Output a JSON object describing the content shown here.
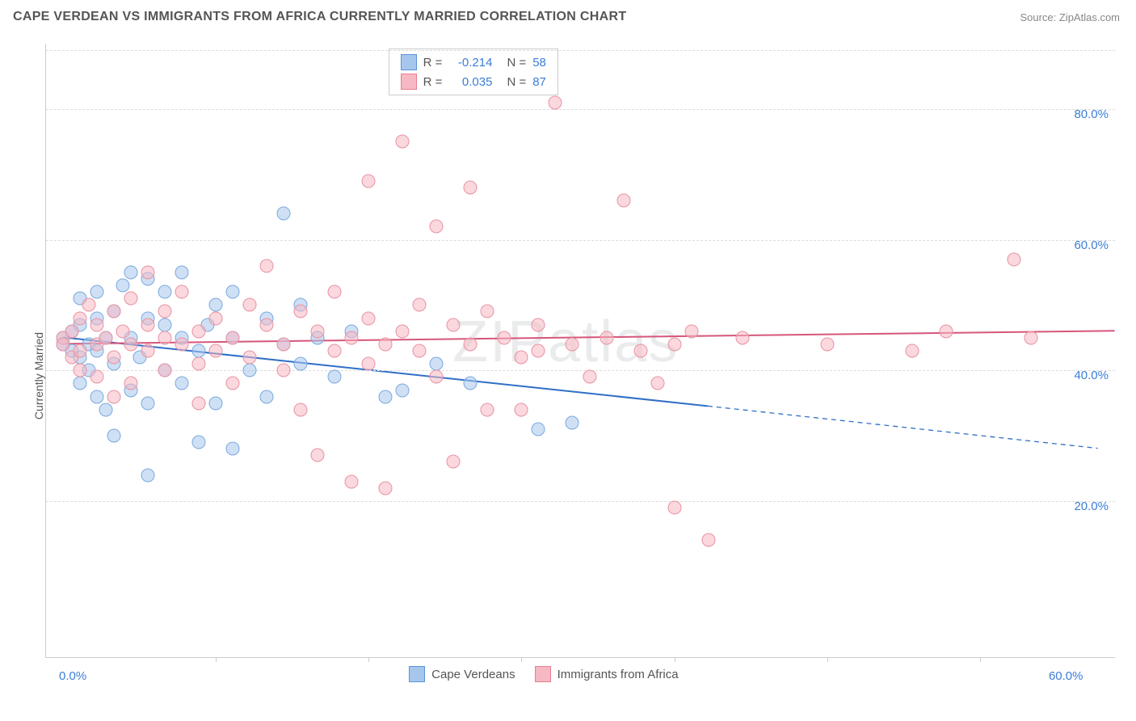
{
  "header": {
    "title": "CAPE VERDEAN VS IMMIGRANTS FROM AFRICA CURRENTLY MARRIED CORRELATION CHART",
    "source": "Source: ZipAtlas.com"
  },
  "chart": {
    "type": "scatter",
    "watermark": "ZIPatlas",
    "y_axis": {
      "title": "Currently Married",
      "ticks": [
        0,
        20,
        40,
        60,
        80
      ],
      "tick_labels": [
        "0.0%",
        "20.0%",
        "40.0%",
        "60.0%",
        "80.0%"
      ],
      "range": [
        -4,
        90
      ],
      "label_color": "#3b7dd8",
      "grid_values": [
        20,
        40,
        60,
        80,
        89
      ],
      "grid_color": "#dddddd"
    },
    "x_axis": {
      "ticks": [
        0,
        60
      ],
      "tick_labels": [
        "0.0%",
        "60.0%"
      ],
      "range": [
        -1,
        62
      ],
      "label_color": "#3b7dd8",
      "minor_ticks": [
        9,
        18,
        27,
        36,
        45,
        54
      ]
    },
    "legend_top": {
      "rows": [
        {
          "swatch_fill": "#a7c6ed",
          "swatch_border": "#5a94d6",
          "r_label": "R =",
          "r": "-0.214",
          "n_label": "N =",
          "n": "58"
        },
        {
          "swatch_fill": "#f6b8c3",
          "swatch_border": "#e57f92",
          "r_label": "R =",
          "r": "0.035",
          "n_label": "N =",
          "n": "87"
        }
      ]
    },
    "legend_bottom": {
      "items": [
        {
          "swatch_fill": "#a7c6ed",
          "swatch_border": "#5a94d6",
          "label": "Cape Verdeans"
        },
        {
          "swatch_fill": "#f6b8c3",
          "swatch_border": "#e57f92",
          "label": "Immigrants from Africa"
        }
      ]
    },
    "series": [
      {
        "name": "Cape Verdeans",
        "fill": "rgba(167,198,237,0.55)",
        "stroke": "#7aa9de",
        "marker_size": 17,
        "trend": {
          "y_at_xmin": 45,
          "y_at_xmax": 28,
          "solid_until_x": 38,
          "color": "#2f6fc7",
          "width": 2
        },
        "points": [
          [
            0,
            44
          ],
          [
            0,
            45
          ],
          [
            0.5,
            43
          ],
          [
            0.5,
            46
          ],
          [
            1,
            42
          ],
          [
            1,
            47
          ],
          [
            1,
            38
          ],
          [
            1,
            51
          ],
          [
            1.5,
            44
          ],
          [
            1.5,
            40
          ],
          [
            2,
            52
          ],
          [
            2,
            43
          ],
          [
            2,
            48
          ],
          [
            2,
            36
          ],
          [
            2.5,
            34
          ],
          [
            2.5,
            45
          ],
          [
            3,
            41
          ],
          [
            3,
            49
          ],
          [
            3,
            30
          ],
          [
            3.5,
            53
          ],
          [
            4,
            45
          ],
          [
            4,
            55
          ],
          [
            4,
            37
          ],
          [
            4.5,
            42
          ],
          [
            5,
            24
          ],
          [
            5,
            48
          ],
          [
            5,
            35
          ],
          [
            5,
            54
          ],
          [
            6,
            47
          ],
          [
            6,
            40
          ],
          [
            6,
            52
          ],
          [
            7,
            45
          ],
          [
            7,
            38
          ],
          [
            7,
            55
          ],
          [
            8,
            43
          ],
          [
            8,
            29
          ],
          [
            8.5,
            47
          ],
          [
            9,
            35
          ],
          [
            9,
            50
          ],
          [
            10,
            28
          ],
          [
            10,
            45
          ],
          [
            10,
            52
          ],
          [
            11,
            40
          ],
          [
            12,
            48
          ],
          [
            12,
            36
          ],
          [
            13,
            64
          ],
          [
            13,
            44
          ],
          [
            14,
            50
          ],
          [
            14,
            41
          ],
          [
            15,
            45
          ],
          [
            16,
            39
          ],
          [
            17,
            46
          ],
          [
            19,
            36
          ],
          [
            20,
            37
          ],
          [
            22,
            41
          ],
          [
            24,
            38
          ],
          [
            28,
            31
          ],
          [
            30,
            32
          ]
        ]
      },
      {
        "name": "Immigrants from Africa",
        "fill": "rgba(246,184,195,0.55)",
        "stroke": "#e892a2",
        "marker_size": 17,
        "trend": {
          "y_at_xmin": 44,
          "y_at_xmax": 46,
          "solid_until_x": 62,
          "color": "#d6567a",
          "width": 2
        },
        "points": [
          [
            0,
            45
          ],
          [
            0,
            44
          ],
          [
            0.5,
            46
          ],
          [
            0.5,
            42
          ],
          [
            1,
            48
          ],
          [
            1,
            43
          ],
          [
            1,
            40
          ],
          [
            1.5,
            50
          ],
          [
            2,
            44
          ],
          [
            2,
            47
          ],
          [
            2,
            39
          ],
          [
            2.5,
            45
          ],
          [
            3,
            42
          ],
          [
            3,
            49
          ],
          [
            3,
            36
          ],
          [
            3.5,
            46
          ],
          [
            4,
            44
          ],
          [
            4,
            51
          ],
          [
            4,
            38
          ],
          [
            5,
            47
          ],
          [
            5,
            43
          ],
          [
            5,
            55
          ],
          [
            6,
            45
          ],
          [
            6,
            40
          ],
          [
            6,
            49
          ],
          [
            7,
            44
          ],
          [
            7,
            52
          ],
          [
            8,
            41
          ],
          [
            8,
            46
          ],
          [
            8,
            35
          ],
          [
            9,
            48
          ],
          [
            9,
            43
          ],
          [
            10,
            45
          ],
          [
            10,
            38
          ],
          [
            11,
            50
          ],
          [
            11,
            42
          ],
          [
            12,
            47
          ],
          [
            12,
            56
          ],
          [
            13,
            44
          ],
          [
            13,
            40
          ],
          [
            14,
            49
          ],
          [
            14,
            34
          ],
          [
            15,
            46
          ],
          [
            15,
            27
          ],
          [
            16,
            43
          ],
          [
            16,
            52
          ],
          [
            17,
            45
          ],
          [
            17,
            23
          ],
          [
            18,
            48
          ],
          [
            18,
            41
          ],
          [
            18,
            69
          ],
          [
            19,
            44
          ],
          [
            19,
            22
          ],
          [
            20,
            46
          ],
          [
            20,
            75
          ],
          [
            21,
            43
          ],
          [
            21,
            50
          ],
          [
            22,
            39
          ],
          [
            22,
            62
          ],
          [
            23,
            47
          ],
          [
            23,
            26
          ],
          [
            24,
            44
          ],
          [
            24,
            68
          ],
          [
            25,
            49
          ],
          [
            25,
            34
          ],
          [
            26,
            45
          ],
          [
            27,
            42
          ],
          [
            27,
            34
          ],
          [
            28,
            47
          ],
          [
            28,
            43
          ],
          [
            29,
            81
          ],
          [
            30,
            44
          ],
          [
            31,
            39
          ],
          [
            32,
            45
          ],
          [
            33,
            66
          ],
          [
            34,
            43
          ],
          [
            35,
            38
          ],
          [
            36,
            44
          ],
          [
            36,
            19
          ],
          [
            37,
            46
          ],
          [
            38,
            14
          ],
          [
            40,
            45
          ],
          [
            45,
            44
          ],
          [
            50,
            43
          ],
          [
            52,
            46
          ],
          [
            56,
            57
          ],
          [
            57,
            45
          ]
        ]
      }
    ]
  }
}
